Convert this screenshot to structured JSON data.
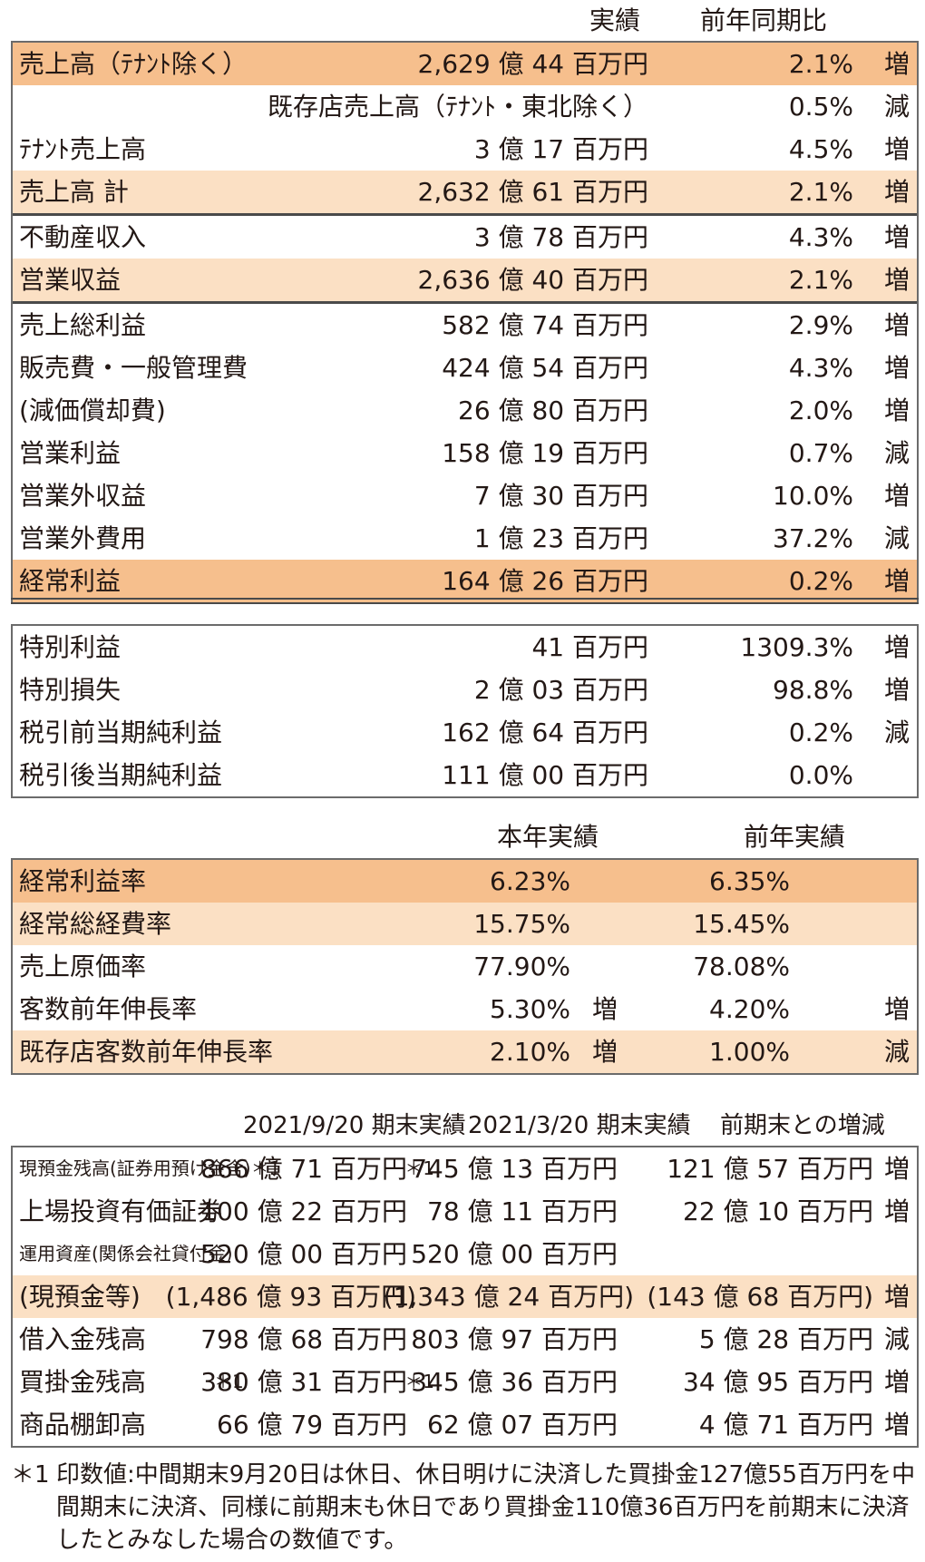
{
  "section1": {
    "header": {
      "actual": "実績",
      "yoy": "前年同期比"
    },
    "rows": [
      {
        "label": "売上高（ﾃﾅﾝﾄ除く）",
        "value": "2,629 億 44 百万円",
        "pct": "2.1%",
        "dir": "増"
      },
      {
        "label": "既存店売上高（ﾃﾅﾝﾄ・東北除く）",
        "value": "",
        "pct": "0.5%",
        "dir": "減"
      },
      {
        "label": "ﾃﾅﾝﾄ売上高",
        "value": "3 億 17 百万円",
        "pct": "4.5%",
        "dir": "増"
      },
      {
        "label": "売上高 計",
        "value": "2,632 億 61 百万円",
        "pct": "2.1%",
        "dir": "増"
      },
      {
        "label": "不動産収入",
        "value": "3 億 78 百万円",
        "pct": "4.3%",
        "dir": "増"
      },
      {
        "label": "営業収益",
        "value": "2,636 億 40 百万円",
        "pct": "2.1%",
        "dir": "増"
      },
      {
        "label": "売上総利益",
        "value": "582 億 74 百万円",
        "pct": "2.9%",
        "dir": "増"
      },
      {
        "label": "販売費・一般管理費",
        "value": "424 億 54 百万円",
        "pct": "4.3%",
        "dir": "増"
      },
      {
        "label": "(減価償却費)",
        "value": "26 億 80 百万円",
        "pct": "2.0%",
        "dir": "増"
      },
      {
        "label": "営業利益",
        "value": "158 億 19 百万円",
        "pct": "0.7%",
        "dir": "減"
      },
      {
        "label": "営業外収益",
        "value": "7 億 30 百万円",
        "pct": "10.0%",
        "dir": "増"
      },
      {
        "label": "営業外費用",
        "value": "1 億 23 百万円",
        "pct": "37.2%",
        "dir": "減"
      },
      {
        "label": "経常利益",
        "value": "164 億 26 百万円",
        "pct": "0.2%",
        "dir": "増"
      }
    ]
  },
  "section2": {
    "rows": [
      {
        "label": "特別利益",
        "value": "41 百万円",
        "pct": "1309.3%",
        "dir": "増"
      },
      {
        "label": "特別損失",
        "value": "2 億 03 百万円",
        "pct": "98.8%",
        "dir": "増"
      },
      {
        "label": "税引前当期純利益",
        "value": "162 億 64 百万円",
        "pct": "0.2%",
        "dir": "減"
      },
      {
        "label": "税引後当期純利益",
        "value": "111 億 00 百万円",
        "pct": "0.0%",
        "dir": ""
      }
    ]
  },
  "section3": {
    "header": {
      "current": "本年実績",
      "previous": "前年実績"
    },
    "rows": [
      {
        "label": "経常利益率",
        "current": "6.23%",
        "cur_dir": "",
        "previous": "6.35%",
        "prev_dir": ""
      },
      {
        "label": "経常総経費率",
        "current": "15.75%",
        "cur_dir": "",
        "previous": "15.45%",
        "prev_dir": ""
      },
      {
        "label": "売上原価率",
        "current": "77.90%",
        "cur_dir": "",
        "previous": "78.08%",
        "prev_dir": ""
      },
      {
        "label": "客数前年伸長率",
        "current": "5.30%",
        "cur_dir": "増",
        "previous": "4.20%",
        "prev_dir": "増"
      },
      {
        "label": "既存店客数前年伸長率",
        "current": "2.10%",
        "cur_dir": "増",
        "previous": "1.00%",
        "prev_dir": "減"
      }
    ]
  },
  "section4": {
    "header": {
      "col1": "2021/9/20 期末実績",
      "col2": "2021/3/20 期末実績",
      "col3": "前期末との増減"
    },
    "rows": [
      {
        "label": "現預金残高(証券用預け金含)＊1",
        "col1": "866 億 71 百万円",
        "mark": "＊1",
        "col2": "745 億 13 百万円",
        "col3": "121 億 57 百万円",
        "dir": "増"
      },
      {
        "label": "上場投資有価証券",
        "col1": "100 億 22 百万円",
        "mark": "",
        "col2": "78 億 11 百万円",
        "col3": "22 億 10 百万円",
        "dir": "増"
      },
      {
        "label": "運用資産(関係会社貸付金)",
        "col1": "520 億 00 百万円",
        "mark": "",
        "col2": "520 億 00 百万円",
        "col3": "",
        "dir": ""
      },
      {
        "label": "(現預金等)",
        "col1": "(1,486 億 93 百万円)",
        "mark": "",
        "col2": "(1,343 億 24 百万円)",
        "col3": "(143 億 68 百万円)",
        "dir": "増"
      },
      {
        "label": "借入金残高",
        "col1": "798 億 68 百万円",
        "mark": "",
        "col2": "803 億 97 百万円",
        "col3": "5 億 28 百万円",
        "dir": "減"
      },
      {
        "label": "買掛金残高",
        "label_mark": "＊1",
        "col1": "380 億 31 百万円",
        "mark": "＊1",
        "col2": "345 億 36 百万円",
        "col3": "34 億 95 百万円",
        "dir": "増"
      },
      {
        "label": "商品棚卸高",
        "col1": "66 億 79 百万円",
        "mark": "",
        "col2": "62 億 07 百万円",
        "col3": "4 億 71 百万円",
        "dir": "増"
      }
    ]
  },
  "footnote": {
    "mark": "＊1",
    "text": "印数値:中間期末9月20日は休日、休日明けに決済した買掛金127億55百万円を中間期末に決済、同様に前期末も休日であり買掛金110億36百万円を前期末に決済したとみなした場合の数値です。"
  }
}
